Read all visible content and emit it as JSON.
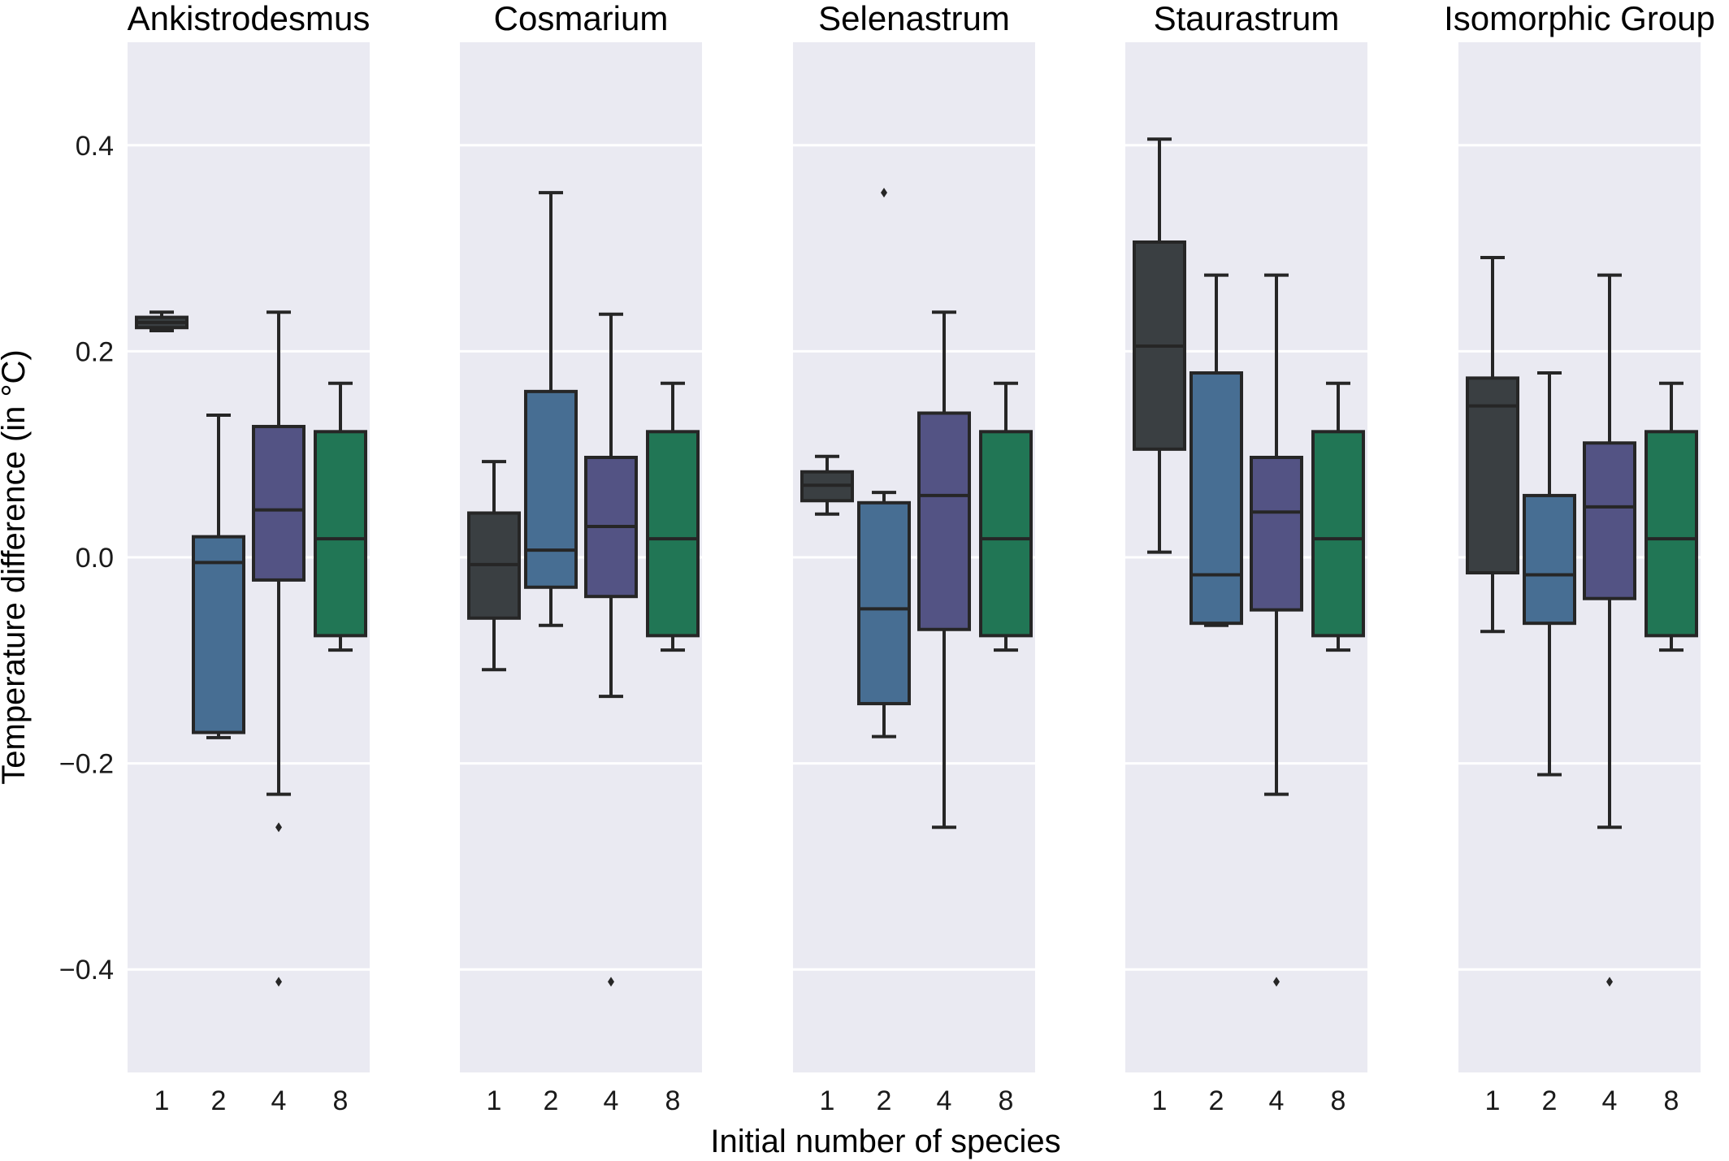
{
  "chart_data": {
    "type": "box",
    "ylabel": "Temperature difference (in °C)",
    "xlabel": "Initial number of species",
    "ylim": [
      -0.5,
      0.5
    ],
    "yticks": [
      -0.4,
      -0.2,
      0.0,
      0.2,
      0.4
    ],
    "ytick_labels": [
      "−0.4",
      "−0.2",
      "0.0",
      "0.2",
      "0.4"
    ],
    "categories": [
      "1",
      "2",
      "4",
      "8"
    ],
    "colors": [
      "#3A3F42",
      "#476E93",
      "#535384",
      "#217655"
    ],
    "grid": true,
    "panels": [
      {
        "title": "Ankistrodesmus",
        "boxes": [
          {
            "category": "1",
            "whislo": 0.22,
            "q1": 0.223,
            "med": 0.228,
            "q3": 0.233,
            "whishi": 0.238,
            "fliers": []
          },
          {
            "category": "2",
            "whislo": -0.175,
            "q1": -0.17,
            "med": -0.005,
            "q3": 0.02,
            "whishi": 0.138,
            "fliers": []
          },
          {
            "category": "4",
            "whislo": -0.23,
            "q1": -0.022,
            "med": 0.046,
            "q3": 0.127,
            "whishi": 0.238,
            "fliers": [
              -0.262,
              -0.412
            ]
          },
          {
            "category": "8",
            "whislo": -0.09,
            "q1": -0.076,
            "med": 0.018,
            "q3": 0.122,
            "whishi": 0.169,
            "fliers": []
          }
        ]
      },
      {
        "title": "Cosmarium",
        "boxes": [
          {
            "category": "1",
            "whislo": -0.109,
            "q1": -0.059,
            "med": -0.007,
            "q3": 0.043,
            "whishi": 0.093,
            "fliers": []
          },
          {
            "category": "2",
            "whislo": -0.066,
            "q1": -0.029,
            "med": 0.007,
            "q3": 0.161,
            "whishi": 0.354,
            "fliers": []
          },
          {
            "category": "4",
            "whislo": -0.135,
            "q1": -0.038,
            "med": 0.03,
            "q3": 0.097,
            "whishi": 0.236,
            "fliers": [
              -0.412
            ]
          },
          {
            "category": "8",
            "whislo": -0.09,
            "q1": -0.076,
            "med": 0.018,
            "q3": 0.122,
            "whishi": 0.169,
            "fliers": []
          }
        ]
      },
      {
        "title": "Selenastrum",
        "boxes": [
          {
            "category": "1",
            "whislo": 0.042,
            "q1": 0.055,
            "med": 0.07,
            "q3": 0.083,
            "whishi": 0.098,
            "fliers": []
          },
          {
            "category": "2",
            "whislo": -0.174,
            "q1": -0.142,
            "med": -0.05,
            "q3": 0.053,
            "whishi": 0.063,
            "fliers": [
              0.354
            ]
          },
          {
            "category": "4",
            "whislo": -0.262,
            "q1": -0.07,
            "med": 0.06,
            "q3": 0.14,
            "whishi": 0.238,
            "fliers": []
          },
          {
            "category": "8",
            "whislo": -0.09,
            "q1": -0.076,
            "med": 0.018,
            "q3": 0.122,
            "whishi": 0.169,
            "fliers": []
          }
        ]
      },
      {
        "title": "Staurastrum",
        "boxes": [
          {
            "category": "1",
            "whislo": 0.005,
            "q1": 0.105,
            "med": 0.205,
            "q3": 0.306,
            "whishi": 0.406,
            "fliers": []
          },
          {
            "category": "2",
            "whislo": -0.066,
            "q1": -0.064,
            "med": -0.017,
            "q3": 0.179,
            "whishi": 0.274,
            "fliers": []
          },
          {
            "category": "4",
            "whislo": -0.23,
            "q1": -0.051,
            "med": 0.044,
            "q3": 0.097,
            "whishi": 0.274,
            "fliers": [
              -0.412
            ]
          },
          {
            "category": "8",
            "whislo": -0.09,
            "q1": -0.076,
            "med": 0.018,
            "q3": 0.122,
            "whishi": 0.169,
            "fliers": []
          }
        ]
      },
      {
        "title": "Isomorphic Group",
        "boxes": [
          {
            "category": "1",
            "whislo": -0.072,
            "q1": -0.015,
            "med": 0.147,
            "q3": 0.174,
            "whishi": 0.291,
            "fliers": []
          },
          {
            "category": "2",
            "whislo": -0.211,
            "q1": -0.064,
            "med": -0.017,
            "q3": 0.06,
            "whishi": 0.179,
            "fliers": []
          },
          {
            "category": "4",
            "whislo": -0.262,
            "q1": -0.04,
            "med": 0.049,
            "q3": 0.111,
            "whishi": 0.274,
            "fliers": [
              -0.412
            ]
          },
          {
            "category": "8",
            "whislo": -0.09,
            "q1": -0.076,
            "med": 0.018,
            "q3": 0.122,
            "whishi": 0.169,
            "fliers": []
          }
        ]
      }
    ]
  }
}
